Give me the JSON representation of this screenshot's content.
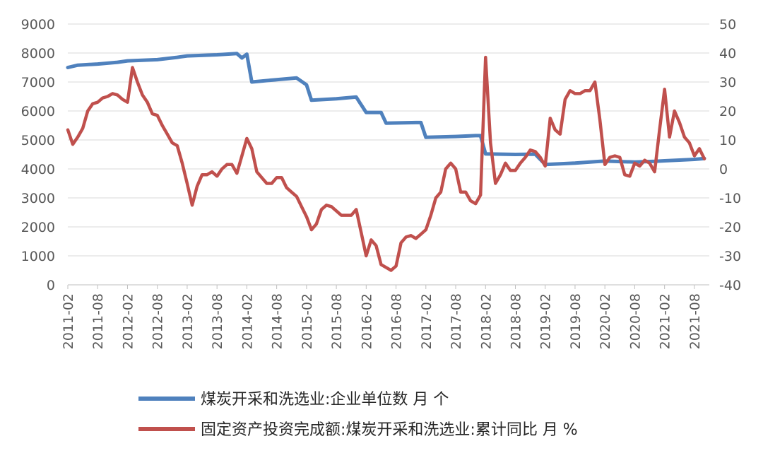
{
  "chart_data": {
    "type": "line",
    "x_tick_labels": [
      "2011-02",
      "2011-08",
      "2012-02",
      "2012-08",
      "2013-02",
      "2013-08",
      "2014-02",
      "2014-08",
      "2015-02",
      "2015-08",
      "2016-02",
      "2016-08",
      "2017-02",
      "2017-08",
      "2018-02",
      "2018-08",
      "2019-02",
      "2019-08",
      "2020-02",
      "2020-08",
      "2021-02",
      "2021-08"
    ],
    "y_left": {
      "min": 0,
      "max": 9000,
      "ticks": [
        "0",
        "1000",
        "2000",
        "3000",
        "4000",
        "5000",
        "6000",
        "7000",
        "8000",
        "9000"
      ]
    },
    "y_right": {
      "min": -40,
      "max": 50,
      "ticks": [
        "-40",
        "-30",
        "-20",
        "-10",
        "0",
        "10",
        "20",
        "30",
        "40",
        "50"
      ]
    },
    "grid": true,
    "legend_position": "bottom",
    "series": [
      {
        "name": "煤炭开采和洗选业:企业单位数 月 个",
        "axis": "left",
        "color": "#4F81BD",
        "points": [
          [
            "2011-02",
            7500
          ],
          [
            "2011-04",
            7580
          ],
          [
            "2011-08",
            7620
          ],
          [
            "2011-12",
            7680
          ],
          [
            "2012-02",
            7730
          ],
          [
            "2012-08",
            7770
          ],
          [
            "2012-12",
            7850
          ],
          [
            "2013-02",
            7900
          ],
          [
            "2013-08",
            7940
          ],
          [
            "2013-12",
            7980
          ],
          [
            "2014-01",
            7830
          ],
          [
            "2014-02",
            7960
          ],
          [
            "2014-03",
            7000
          ],
          [
            "2014-08",
            7080
          ],
          [
            "2014-12",
            7140
          ],
          [
            "2015-02",
            6900
          ],
          [
            "2015-03",
            6370
          ],
          [
            "2015-08",
            6420
          ],
          [
            "2015-12",
            6480
          ],
          [
            "2016-02",
            5950
          ],
          [
            "2016-05",
            5950
          ],
          [
            "2016-06",
            5580
          ],
          [
            "2016-12",
            5600
          ],
          [
            "2017-01",
            5600
          ],
          [
            "2017-02",
            5090
          ],
          [
            "2017-08",
            5120
          ],
          [
            "2017-12",
            5150
          ],
          [
            "2018-01",
            5150
          ],
          [
            "2018-02",
            4520
          ],
          [
            "2018-08",
            4500
          ],
          [
            "2018-12",
            4510
          ],
          [
            "2019-02",
            4150
          ],
          [
            "2019-08",
            4200
          ],
          [
            "2019-12",
            4250
          ],
          [
            "2020-02",
            4270
          ],
          [
            "2020-08",
            4240
          ],
          [
            "2020-12",
            4260
          ],
          [
            "2021-02",
            4280
          ],
          [
            "2021-08",
            4330
          ],
          [
            "2021-10",
            4360
          ]
        ]
      },
      {
        "name": "固定资产投资完成额:煤炭开采和洗选业:累计同比 月 %",
        "axis": "right",
        "color": "#C0504D",
        "points": [
          [
            "2011-02",
            13.5
          ],
          [
            "2011-03",
            8.5
          ],
          [
            "2011-04",
            11
          ],
          [
            "2011-05",
            14
          ],
          [
            "2011-06",
            20
          ],
          [
            "2011-07",
            22.5
          ],
          [
            "2011-08",
            23
          ],
          [
            "2011-09",
            24.5
          ],
          [
            "2011-10",
            25
          ],
          [
            "2011-11",
            26
          ],
          [
            "2011-12",
            25.5
          ],
          [
            "2012-01",
            24
          ],
          [
            "2012-02",
            23
          ],
          [
            "2012-03",
            35
          ],
          [
            "2012-04",
            30
          ],
          [
            "2012-05",
            25.5
          ],
          [
            "2012-06",
            23
          ],
          [
            "2012-07",
            19
          ],
          [
            "2012-08",
            18.5
          ],
          [
            "2012-09",
            15
          ],
          [
            "2012-10",
            12
          ],
          [
            "2012-11",
            9
          ],
          [
            "2012-12",
            8
          ],
          [
            "2013-01",
            2
          ],
          [
            "2013-02",
            -5
          ],
          [
            "2013-03",
            -12.5
          ],
          [
            "2013-04",
            -6
          ],
          [
            "2013-05",
            -2
          ],
          [
            "2013-06",
            -2
          ],
          [
            "2013-07",
            -1
          ],
          [
            "2013-08",
            -2.5
          ],
          [
            "2013-09",
            0
          ],
          [
            "2013-10",
            1.5
          ],
          [
            "2013-11",
            1.5
          ],
          [
            "2013-12",
            -1.5
          ],
          [
            "2014-01",
            4.5
          ],
          [
            "2014-02",
            10.5
          ],
          [
            "2014-03",
            7
          ],
          [
            "2014-04",
            -1
          ],
          [
            "2014-05",
            -3
          ],
          [
            "2014-06",
            -5
          ],
          [
            "2014-07",
            -5
          ],
          [
            "2014-08",
            -3
          ],
          [
            "2014-09",
            -3
          ],
          [
            "2014-10",
            -6.5
          ],
          [
            "2014-11",
            -8
          ],
          [
            "2014-12",
            -9.5
          ],
          [
            "2015-01",
            -13
          ],
          [
            "2015-02",
            -16.5
          ],
          [
            "2015-03",
            -21
          ],
          [
            "2015-04",
            -19
          ],
          [
            "2015-05",
            -14
          ],
          [
            "2015-06",
            -12.5
          ],
          [
            "2015-07",
            -13
          ],
          [
            "2015-08",
            -14.5
          ],
          [
            "2015-09",
            -16
          ],
          [
            "2015-10",
            -16
          ],
          [
            "2015-11",
            -16
          ],
          [
            "2015-12",
            -14
          ],
          [
            "2016-01",
            -22
          ],
          [
            "2016-02",
            -30
          ],
          [
            "2016-03",
            -24.5
          ],
          [
            "2016-04",
            -26.5
          ],
          [
            "2016-05",
            -33
          ],
          [
            "2016-06",
            -34
          ],
          [
            "2016-07",
            -35
          ],
          [
            "2016-08",
            -33.5
          ],
          [
            "2016-09",
            -25.5
          ],
          [
            "2016-10",
            -23.5
          ],
          [
            "2016-11",
            -23
          ],
          [
            "2016-12",
            -24
          ],
          [
            "2017-01",
            -22.5
          ],
          [
            "2017-02",
            -21
          ],
          [
            "2017-03",
            -16
          ],
          [
            "2017-04",
            -10
          ],
          [
            "2017-05",
            -8
          ],
          [
            "2017-06",
            0
          ],
          [
            "2017-07",
            2
          ],
          [
            "2017-08",
            0
          ],
          [
            "2017-09",
            -8
          ],
          [
            "2017-10",
            -8
          ],
          [
            "2017-11",
            -11
          ],
          [
            "2017-12",
            -12
          ],
          [
            "2018-01",
            -9
          ],
          [
            "2018-02",
            38.5
          ],
          [
            "2018-03",
            9
          ],
          [
            "2018-04",
            -5
          ],
          [
            "2018-05",
            -2
          ],
          [
            "2018-06",
            2
          ],
          [
            "2018-07",
            -0.5
          ],
          [
            "2018-08",
            -0.5
          ],
          [
            "2018-09",
            2
          ],
          [
            "2018-10",
            4
          ],
          [
            "2018-11",
            6.5
          ],
          [
            "2018-12",
            6
          ],
          [
            "2019-01",
            4
          ],
          [
            "2019-02",
            1
          ],
          [
            "2019-03",
            17.5
          ],
          [
            "2019-04",
            13.5
          ],
          [
            "2019-05",
            12
          ],
          [
            "2019-06",
            24
          ],
          [
            "2019-07",
            27
          ],
          [
            "2019-08",
            26
          ],
          [
            "2019-09",
            26
          ],
          [
            "2019-10",
            27
          ],
          [
            "2019-11",
            27
          ],
          [
            "2019-12",
            30
          ],
          [
            "2020-01",
            17
          ],
          [
            "2020-02",
            1.5
          ],
          [
            "2020-03",
            4
          ],
          [
            "2020-04",
            4.5
          ],
          [
            "2020-05",
            4
          ],
          [
            "2020-06",
            -2
          ],
          [
            "2020-07",
            -2.5
          ],
          [
            "2020-08",
            2
          ],
          [
            "2020-09",
            1
          ],
          [
            "2020-10",
            3
          ],
          [
            "2020-11",
            2
          ],
          [
            "2020-12",
            -1
          ],
          [
            "2021-01",
            13.5
          ],
          [
            "2021-02",
            27.5
          ],
          [
            "2021-03",
            11
          ],
          [
            "2021-04",
            20
          ],
          [
            "2021-05",
            16
          ],
          [
            "2021-06",
            11
          ],
          [
            "2021-07",
            9
          ],
          [
            "2021-08",
            4.5
          ],
          [
            "2021-09",
            7
          ],
          [
            "2021-10",
            3.5
          ]
        ]
      }
    ]
  }
}
